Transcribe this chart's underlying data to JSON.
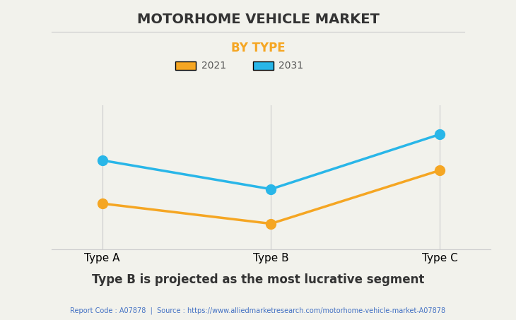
{
  "title": "MOTORHOME VEHICLE MARKET",
  "subtitle": "BY TYPE",
  "categories": [
    "Type A",
    "Type B",
    "Type C"
  ],
  "series": [
    {
      "label": "2021",
      "color": "#F5A623",
      "values": [
        0.32,
        0.18,
        0.55
      ]
    },
    {
      "label": "2031",
      "color": "#29B6E8",
      "values": [
        0.62,
        0.42,
        0.8
      ]
    }
  ],
  "background_color": "#F2F2EC",
  "plot_background_color": "#F2F2EC",
  "title_fontsize": 14,
  "subtitle_fontsize": 12,
  "subtitle_color": "#F5A623",
  "grid_color": "#CCCCCC",
  "annotation_text": "Type B is projected as the most lucrative segment",
  "footer_text": "Report Code : A07878  |  Source : https://www.alliedmarketresearch.com/motorhome-vehicle-market-A07878",
  "footer_color": "#4472C4",
  "ylim": [
    0.0,
    1.0
  ],
  "marker_size": 10,
  "line_width": 2.5
}
